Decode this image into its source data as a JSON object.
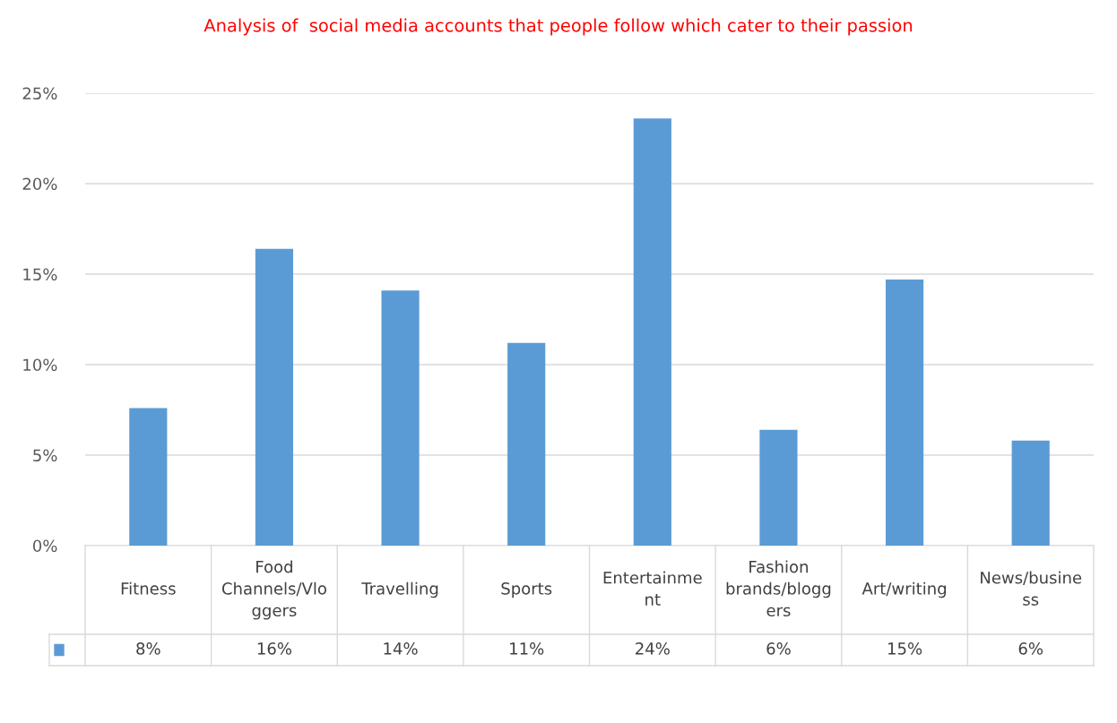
{
  "chart_data": {
    "type": "bar",
    "title": "Analysis of  social media accounts that people follow which cater to their passion",
    "categories": [
      "Fitness",
      "Food\nChannels/Vlo\nggers",
      "Travelling",
      "Sports",
      "Entertainme\nnt",
      "Fashion\nbrands/blogg\ners",
      "Art/writing",
      "News/busine\nss"
    ],
    "values": [
      7.6,
      16.4,
      14.1,
      11.2,
      23.6,
      6.4,
      14.7,
      5.8
    ],
    "value_labels": [
      "8%",
      "16%",
      "14%",
      "11%",
      "24%",
      "6%",
      "15%",
      "6%"
    ],
    "color": "#5b9bd5",
    "ylim": [
      0,
      25
    ],
    "yticks": [
      {
        "value": 0,
        "label": "0%"
      },
      {
        "value": 5,
        "label": "5%"
      },
      {
        "value": 10,
        "label": "10%"
      },
      {
        "value": 15,
        "label": "15%"
      },
      {
        "value": 20,
        "label": "20%"
      },
      {
        "value": 25,
        "label": "25%"
      }
    ],
    "grid": "y"
  }
}
